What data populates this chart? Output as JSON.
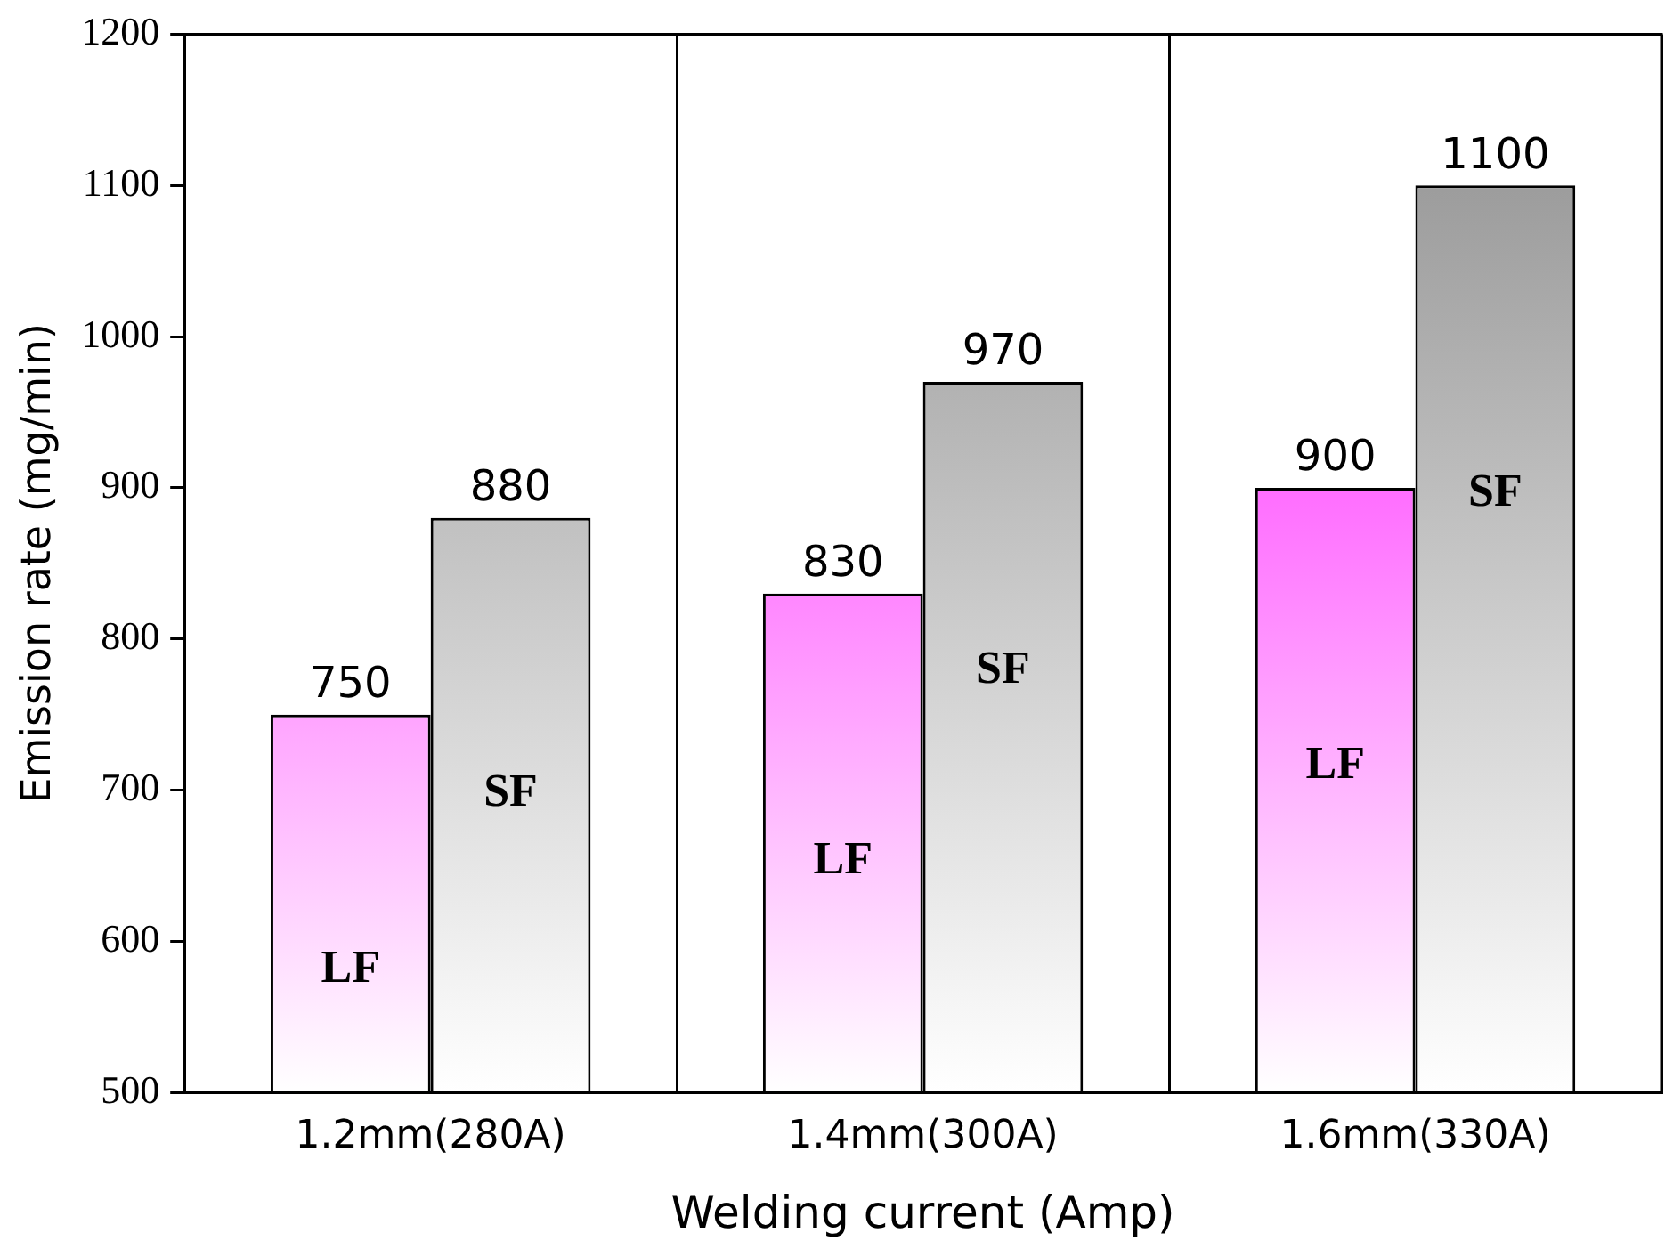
{
  "chart_data": {
    "type": "bar",
    "xlabel": "Welding current (Amp)",
    "ylabel": "Emission rate (mg/min)",
    "categories": [
      "1.2mm(280A)",
      "1.4mm(300A)",
      "1.6mm(330A)"
    ],
    "series": [
      {
        "name": "LF",
        "color": "#ff00ff",
        "values": [
          750,
          830,
          900
        ]
      },
      {
        "name": "SF",
        "color": "#8c8c8c",
        "values": [
          880,
          970,
          1100
        ]
      }
    ],
    "ylim": [
      500,
      1200
    ],
    "yticks": [
      500,
      600,
      700,
      800,
      900,
      1000,
      1100,
      1200
    ],
    "grid": "x",
    "legend": false,
    "data_labels": true
  }
}
